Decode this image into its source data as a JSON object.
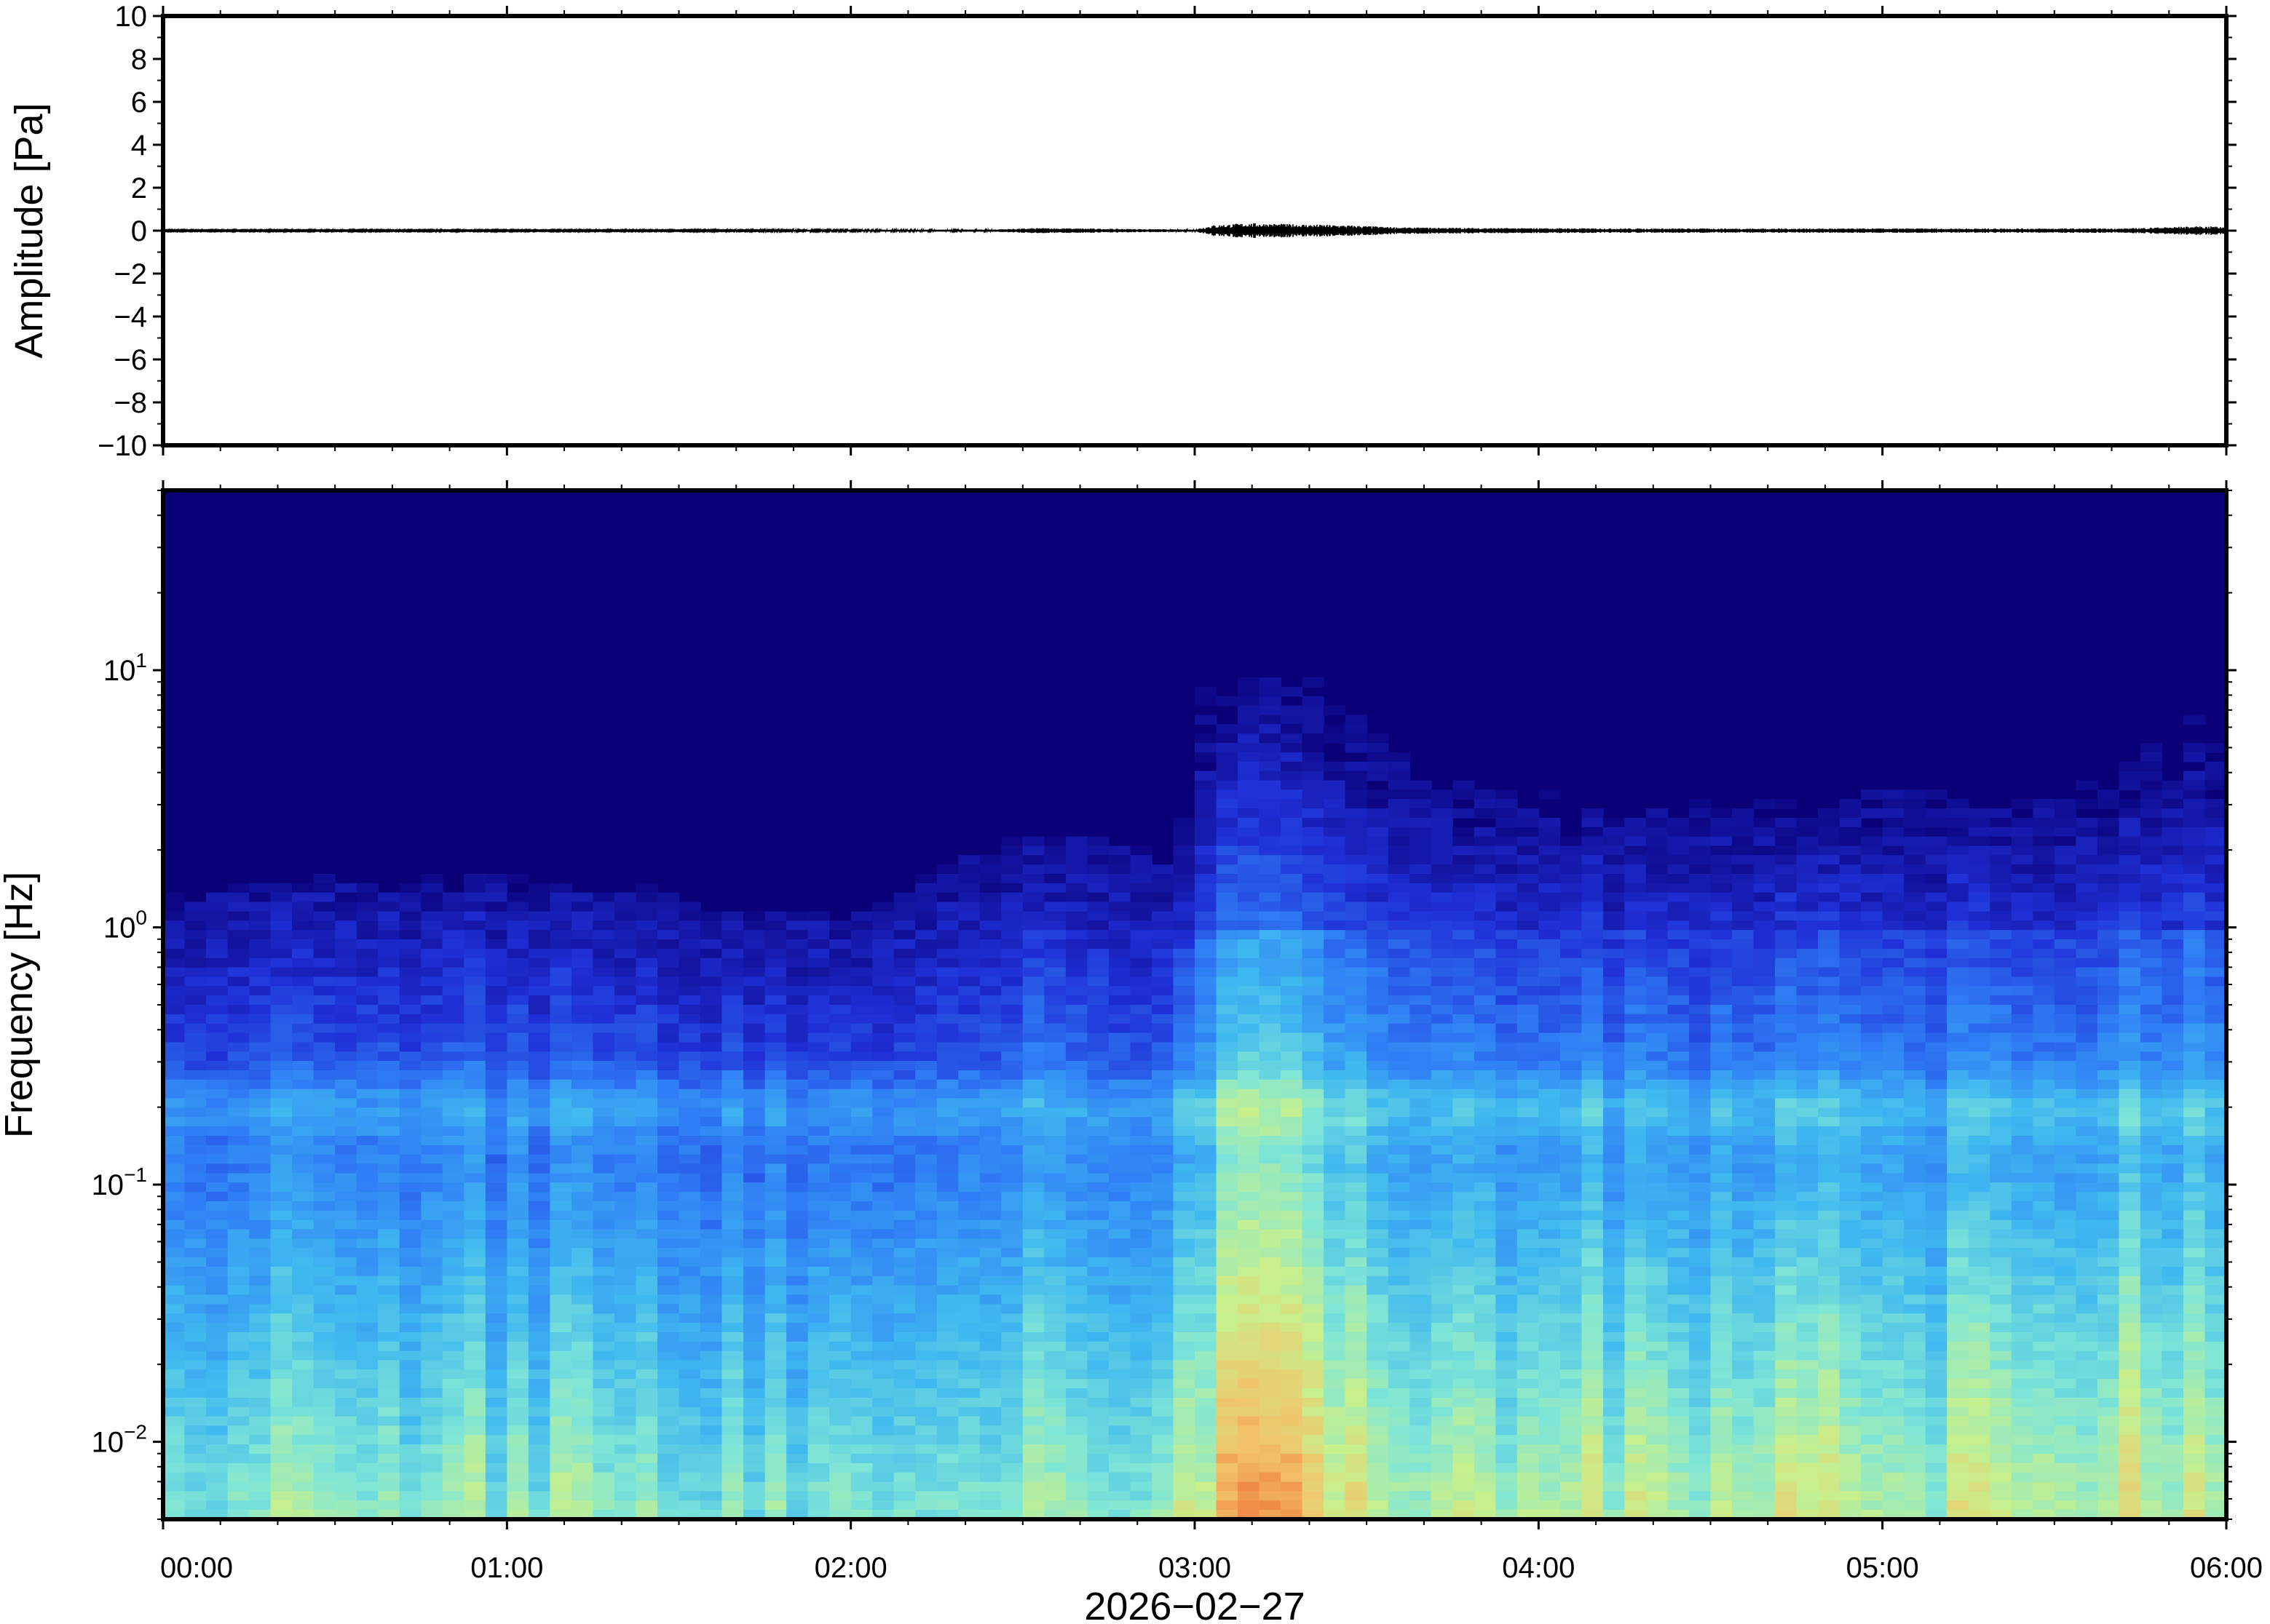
{
  "chart_data": [
    {
      "type": "line",
      "ylabel": "Amplitude [Pa]",
      "ylim": [
        -10,
        10
      ],
      "yticks": [
        10,
        8,
        6,
        4,
        2,
        0,
        -2,
        -4,
        -6,
        -8,
        -10
      ],
      "ytick_labels": [
        "10",
        "8",
        "6",
        "4",
        "2",
        "0",
        "−2",
        "−4",
        "−6",
        "−8",
        "−10"
      ],
      "xlim_hours": [
        0,
        6
      ],
      "series": [
        {
          "color": "#000000",
          "envelope_hours": [
            0.0,
            0.5,
            1.0,
            1.5,
            2.0,
            2.4,
            2.55,
            2.8,
            3.0,
            3.05,
            3.15,
            3.3,
            3.45,
            3.6,
            3.9,
            4.3,
            4.8,
            5.2,
            5.7,
            5.85,
            5.95,
            6.0
          ],
          "envelope_amplitude": [
            0.03,
            0.03,
            0.03,
            0.03,
            0.04,
            0.05,
            0.12,
            0.08,
            0.05,
            0.25,
            0.35,
            0.3,
            0.25,
            0.15,
            0.12,
            0.1,
            0.1,
            0.1,
            0.1,
            0.18,
            0.2,
            0.18
          ]
        }
      ]
    },
    {
      "type": "heatmap",
      "ylabel": "Frequency [Hz]",
      "yscale": "log",
      "ylim": [
        0.005,
        50
      ],
      "yticks": [
        0.01,
        0.1,
        1,
        10
      ],
      "ytick_labels": [
        {
          "base": "10",
          "exp": "−2"
        },
        {
          "base": "10",
          "exp": "−1"
        },
        {
          "base": "10",
          "exp": "0"
        },
        {
          "base": "10",
          "exp": "1"
        }
      ],
      "xlabel": "2026−02−27",
      "xlim_hours": [
        0,
        6
      ],
      "xticks_hours": [
        0,
        1,
        2,
        3,
        4,
        5,
        6
      ],
      "xtick_labels": [
        "00:00",
        "01:00",
        "02:00",
        "03:00",
        "04:00",
        "05:00",
        "06:00"
      ],
      "colormap": [
        "#0a0078",
        "#1f2fd6",
        "#2f7ef5",
        "#3fb8f0",
        "#7fe6d6",
        "#c8f08c",
        "#f2c46a",
        "#f07a3c"
      ],
      "activity_profile": {
        "hours": [
          0.0,
          0.3,
          0.6,
          1.0,
          1.5,
          2.0,
          2.2,
          2.5,
          2.8,
          2.95,
          3.05,
          3.2,
          3.35,
          3.5,
          3.8,
          4.2,
          4.6,
          5.0,
          5.4,
          5.7,
          5.9,
          6.0
        ],
        "level": [
          0.25,
          0.3,
          0.3,
          0.3,
          0.25,
          0.2,
          0.3,
          0.45,
          0.4,
          0.35,
          0.95,
          1.0,
          0.9,
          0.75,
          0.55,
          0.5,
          0.5,
          0.55,
          0.5,
          0.6,
          0.75,
          0.7
        ]
      },
      "microbarom_band_hz": 0.2
    }
  ]
}
